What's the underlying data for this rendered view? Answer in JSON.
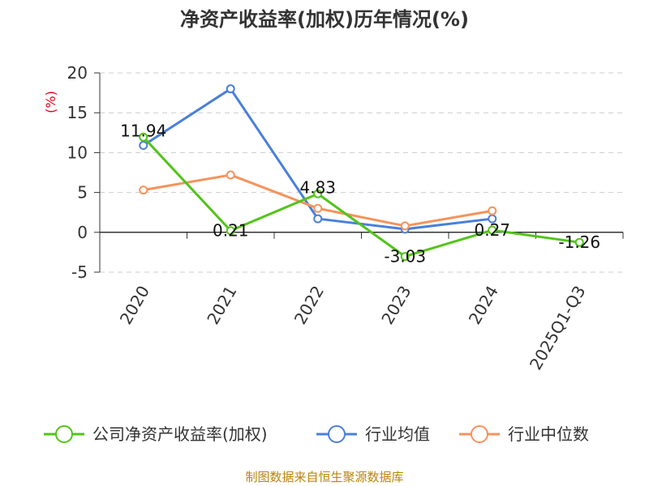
{
  "chart_data": {
    "type": "line",
    "title": "净资产收益率(加权)历年情况(%)",
    "ylabel": "(%)",
    "categories": [
      "2020",
      "2021",
      "2022",
      "2023",
      "2024",
      "2025Q1-Q3"
    ],
    "ylim": [
      -5,
      20
    ],
    "yticks": [
      20,
      15,
      10,
      5,
      0,
      -5
    ],
    "grid": true,
    "legend_position": "bottom",
    "series": [
      {
        "name": "公司净资产收益率(加权)",
        "color": "#52c41a",
        "values": [
          11.94,
          0.21,
          4.83,
          -3.03,
          0.27,
          -1.26
        ],
        "labels": [
          "11.94",
          "0.21",
          "4.83",
          "-3.03",
          "0.27",
          "-1.26"
        ]
      },
      {
        "name": "行业均值",
        "color": "#4a7fdb",
        "values": [
          10.9,
          18.0,
          1.7,
          0.4,
          1.7,
          null
        ]
      },
      {
        "name": "行业中位数",
        "color": "#f5935c",
        "values": [
          5.3,
          7.2,
          3.0,
          0.8,
          2.7,
          null
        ]
      }
    ]
  },
  "source": "制图数据来自恒生聚源数据库"
}
